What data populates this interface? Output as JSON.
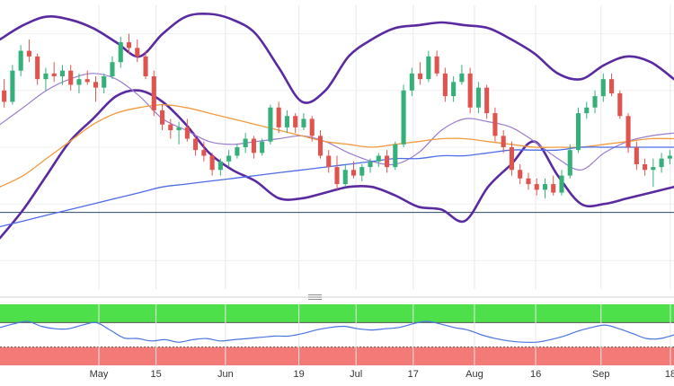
{
  "chart_data": {
    "type": "candlestick",
    "grid": true,
    "x_ticks": [
      {
        "label": "May",
        "date": "2023-05-01"
      },
      {
        "label": "15",
        "date": "2023-05-15"
      },
      {
        "label": "Jun",
        "date": "2023-06-01"
      },
      {
        "label": "19",
        "date": "2023-06-19"
      },
      {
        "label": "Jul",
        "date": "2023-07-03"
      },
      {
        "label": "17",
        "date": "2023-07-17"
      },
      {
        "label": "Aug",
        "date": "2023-08-01"
      },
      {
        "label": "16",
        "date": "2023-08-16"
      },
      {
        "label": "Sep",
        "date": "2023-09-01"
      },
      {
        "label": "18",
        "date": "2023-09-18"
      }
    ],
    "price_panel": {
      "ylim": [
        0,
        100
      ],
      "horizontal_line": 27,
      "candles": [
        {
          "o": 70,
          "h": 74,
          "l": 64,
          "c": 66
        },
        {
          "o": 66,
          "h": 79,
          "l": 65,
          "c": 77
        },
        {
          "o": 77,
          "h": 86,
          "l": 75,
          "c": 84
        },
        {
          "o": 84,
          "h": 88,
          "l": 80,
          "c": 82
        },
        {
          "o": 82,
          "h": 83,
          "l": 72,
          "c": 74
        },
        {
          "o": 74,
          "h": 78,
          "l": 70,
          "c": 76
        },
        {
          "o": 76,
          "h": 80,
          "l": 73,
          "c": 75
        },
        {
          "o": 75,
          "h": 79,
          "l": 72,
          "c": 77
        },
        {
          "o": 77,
          "h": 79,
          "l": 70,
          "c": 72
        },
        {
          "o": 72,
          "h": 76,
          "l": 69,
          "c": 74
        },
        {
          "o": 74,
          "h": 77,
          "l": 72,
          "c": 73
        },
        {
          "o": 73,
          "h": 75,
          "l": 66,
          "c": 71
        },
        {
          "o": 71,
          "h": 76,
          "l": 69,
          "c": 75
        },
        {
          "o": 75,
          "h": 82,
          "l": 74,
          "c": 80
        },
        {
          "o": 80,
          "h": 89,
          "l": 78,
          "c": 87
        },
        {
          "o": 87,
          "h": 90,
          "l": 83,
          "c": 85
        },
        {
          "o": 85,
          "h": 88,
          "l": 80,
          "c": 82
        },
        {
          "o": 82,
          "h": 84,
          "l": 74,
          "c": 75
        },
        {
          "o": 75,
          "h": 77,
          "l": 61,
          "c": 63
        },
        {
          "o": 63,
          "h": 65,
          "l": 56,
          "c": 58
        },
        {
          "o": 58,
          "h": 60,
          "l": 53,
          "c": 56
        },
        {
          "o": 56,
          "h": 59,
          "l": 51,
          "c": 57
        },
        {
          "o": 57,
          "h": 60,
          "l": 52,
          "c": 53
        },
        {
          "o": 53,
          "h": 54,
          "l": 47,
          "c": 49
        },
        {
          "o": 49,
          "h": 52,
          "l": 45,
          "c": 47
        },
        {
          "o": 47,
          "h": 48,
          "l": 40,
          "c": 42
        },
        {
          "o": 42,
          "h": 46,
          "l": 40,
          "c": 45
        },
        {
          "o": 45,
          "h": 49,
          "l": 43,
          "c": 47
        },
        {
          "o": 47,
          "h": 51,
          "l": 46,
          "c": 50
        },
        {
          "o": 50,
          "h": 55,
          "l": 48,
          "c": 53
        },
        {
          "o": 53,
          "h": 54,
          "l": 46,
          "c": 48
        },
        {
          "o": 48,
          "h": 53,
          "l": 47,
          "c": 52
        },
        {
          "o": 52,
          "h": 65,
          "l": 51,
          "c": 64
        },
        {
          "o": 64,
          "h": 66,
          "l": 55,
          "c": 57
        },
        {
          "o": 57,
          "h": 63,
          "l": 55,
          "c": 61
        },
        {
          "o": 61,
          "h": 62,
          "l": 55,
          "c": 57
        },
        {
          "o": 57,
          "h": 62,
          "l": 56,
          "c": 60
        },
        {
          "o": 60,
          "h": 61,
          "l": 52,
          "c": 54
        },
        {
          "o": 54,
          "h": 56,
          "l": 46,
          "c": 47
        },
        {
          "o": 47,
          "h": 49,
          "l": 41,
          "c": 43
        },
        {
          "o": 43,
          "h": 47,
          "l": 35,
          "c": 37
        },
        {
          "o": 37,
          "h": 44,
          "l": 36,
          "c": 42
        },
        {
          "o": 42,
          "h": 45,
          "l": 39,
          "c": 40
        },
        {
          "o": 40,
          "h": 44,
          "l": 38,
          "c": 43
        },
        {
          "o": 43,
          "h": 46,
          "l": 41,
          "c": 45
        },
        {
          "o": 45,
          "h": 48,
          "l": 43,
          "c": 47
        },
        {
          "o": 47,
          "h": 49,
          "l": 41,
          "c": 43
        },
        {
          "o": 43,
          "h": 52,
          "l": 42,
          "c": 51
        },
        {
          "o": 51,
          "h": 72,
          "l": 50,
          "c": 70
        },
        {
          "o": 70,
          "h": 78,
          "l": 68,
          "c": 76
        },
        {
          "o": 76,
          "h": 80,
          "l": 72,
          "c": 74
        },
        {
          "o": 74,
          "h": 84,
          "l": 73,
          "c": 82
        },
        {
          "o": 82,
          "h": 84,
          "l": 75,
          "c": 76
        },
        {
          "o": 76,
          "h": 78,
          "l": 66,
          "c": 68
        },
        {
          "o": 68,
          "h": 75,
          "l": 66,
          "c": 73
        },
        {
          "o": 73,
          "h": 79,
          "l": 72,
          "c": 76
        },
        {
          "o": 76,
          "h": 78,
          "l": 62,
          "c": 64
        },
        {
          "o": 64,
          "h": 73,
          "l": 62,
          "c": 71
        },
        {
          "o": 71,
          "h": 72,
          "l": 60,
          "c": 62
        },
        {
          "o": 62,
          "h": 64,
          "l": 52,
          "c": 54
        },
        {
          "o": 54,
          "h": 56,
          "l": 48,
          "c": 50
        },
        {
          "o": 50,
          "h": 52,
          "l": 40,
          "c": 42
        },
        {
          "o": 42,
          "h": 44,
          "l": 37,
          "c": 39
        },
        {
          "o": 39,
          "h": 41,
          "l": 35,
          "c": 37
        },
        {
          "o": 37,
          "h": 39,
          "l": 33,
          "c": 35
        },
        {
          "o": 35,
          "h": 39,
          "l": 32,
          "c": 37
        },
        {
          "o": 37,
          "h": 40,
          "l": 33,
          "c": 34
        },
        {
          "o": 34,
          "h": 42,
          "l": 33,
          "c": 40
        },
        {
          "o": 40,
          "h": 51,
          "l": 39,
          "c": 49
        },
        {
          "o": 49,
          "h": 64,
          "l": 48,
          "c": 62
        },
        {
          "o": 62,
          "h": 66,
          "l": 60,
          "c": 64
        },
        {
          "o": 64,
          "h": 70,
          "l": 62,
          "c": 68
        },
        {
          "o": 68,
          "h": 76,
          "l": 66,
          "c": 74
        },
        {
          "o": 74,
          "h": 76,
          "l": 68,
          "c": 69
        },
        {
          "o": 69,
          "h": 70,
          "l": 60,
          "c": 61
        },
        {
          "o": 61,
          "h": 62,
          "l": 48,
          "c": 50
        },
        {
          "o": 50,
          "h": 52,
          "l": 42,
          "c": 44
        },
        {
          "o": 44,
          "h": 46,
          "l": 40,
          "c": 42
        },
        {
          "o": 42,
          "h": 46,
          "l": 36,
          "c": 43
        },
        {
          "o": 43,
          "h": 48,
          "l": 41,
          "c": 46
        },
        {
          "o": 46,
          "h": 49,
          "l": 44,
          "c": 47
        }
      ],
      "series": [
        {
          "name": "",
          "color": "#5a2aa0",
          "style": "bollinger-upper",
          "values": [
            88,
            93,
            96,
            95,
            92,
            87,
            82,
            90,
            96,
            97,
            95,
            90,
            78,
            66,
            70,
            82,
            88,
            92,
            93,
            94,
            93,
            92,
            88,
            83,
            76,
            74,
            79,
            82,
            80,
            74
          ]
        },
        {
          "name": "",
          "color": "#5a2aa0",
          "style": "bollinger-lower",
          "values": [
            18,
            28,
            40,
            52,
            60,
            68,
            70,
            66,
            58,
            48,
            42,
            38,
            32,
            32,
            34,
            36,
            36,
            33,
            29,
            28,
            24,
            36,
            44,
            52,
            40,
            30,
            30,
            32,
            34,
            36
          ]
        },
        {
          "name": "",
          "color": "#9b7ccc",
          "style": "bollinger-middle",
          "values": [
            58,
            64,
            70,
            74,
            76,
            74,
            68,
            60,
            56,
            52,
            51,
            52,
            53,
            54,
            52,
            48,
            45,
            44,
            48,
            56,
            60,
            59,
            57,
            52,
            46,
            42,
            48,
            52,
            54,
            55
          ]
        },
        {
          "name": "",
          "color": "#f29a3e",
          "style": "sma-mid",
          "values": [
            36,
            40,
            46,
            52,
            58,
            62,
            64,
            65,
            64,
            62,
            60,
            58,
            56,
            54,
            52,
            51,
            50,
            51,
            52,
            53,
            53,
            52,
            51,
            50,
            50,
            50,
            51,
            52,
            53,
            53
          ]
        },
        {
          "name": "",
          "color": "#4e6be8",
          "style": "sma-long",
          "values": [
            22,
            24,
            26,
            28,
            30,
            32,
            34,
            36,
            37,
            38,
            39,
            40,
            41,
            42,
            43,
            44,
            45,
            46,
            46,
            47,
            47,
            48,
            49,
            49,
            49,
            50,
            50,
            50,
            50,
            50
          ]
        }
      ]
    },
    "oscillator_panel": {
      "ylim": [
        0,
        100
      ],
      "overbought_band": [
        70,
        100
      ],
      "oversold_band": [
        0,
        30
      ],
      "overbought_color": "#4ee04a",
      "oversold_color": "#f47a78",
      "series": [
        {
          "name": "",
          "color": "#4a74e0",
          "values": [
            62,
            68,
            72,
            64,
            60,
            60,
            66,
            70,
            58,
            45,
            44,
            40,
            42,
            38,
            42,
            44,
            40,
            42,
            44,
            46,
            48,
            48,
            52,
            58,
            62,
            64,
            60,
            58,
            60,
            62,
            68,
            72,
            68,
            62,
            58,
            50,
            44,
            40,
            38,
            38,
            42,
            48,
            56,
            62,
            66,
            60,
            52,
            44,
            44,
            50
          ]
        }
      ]
    }
  }
}
